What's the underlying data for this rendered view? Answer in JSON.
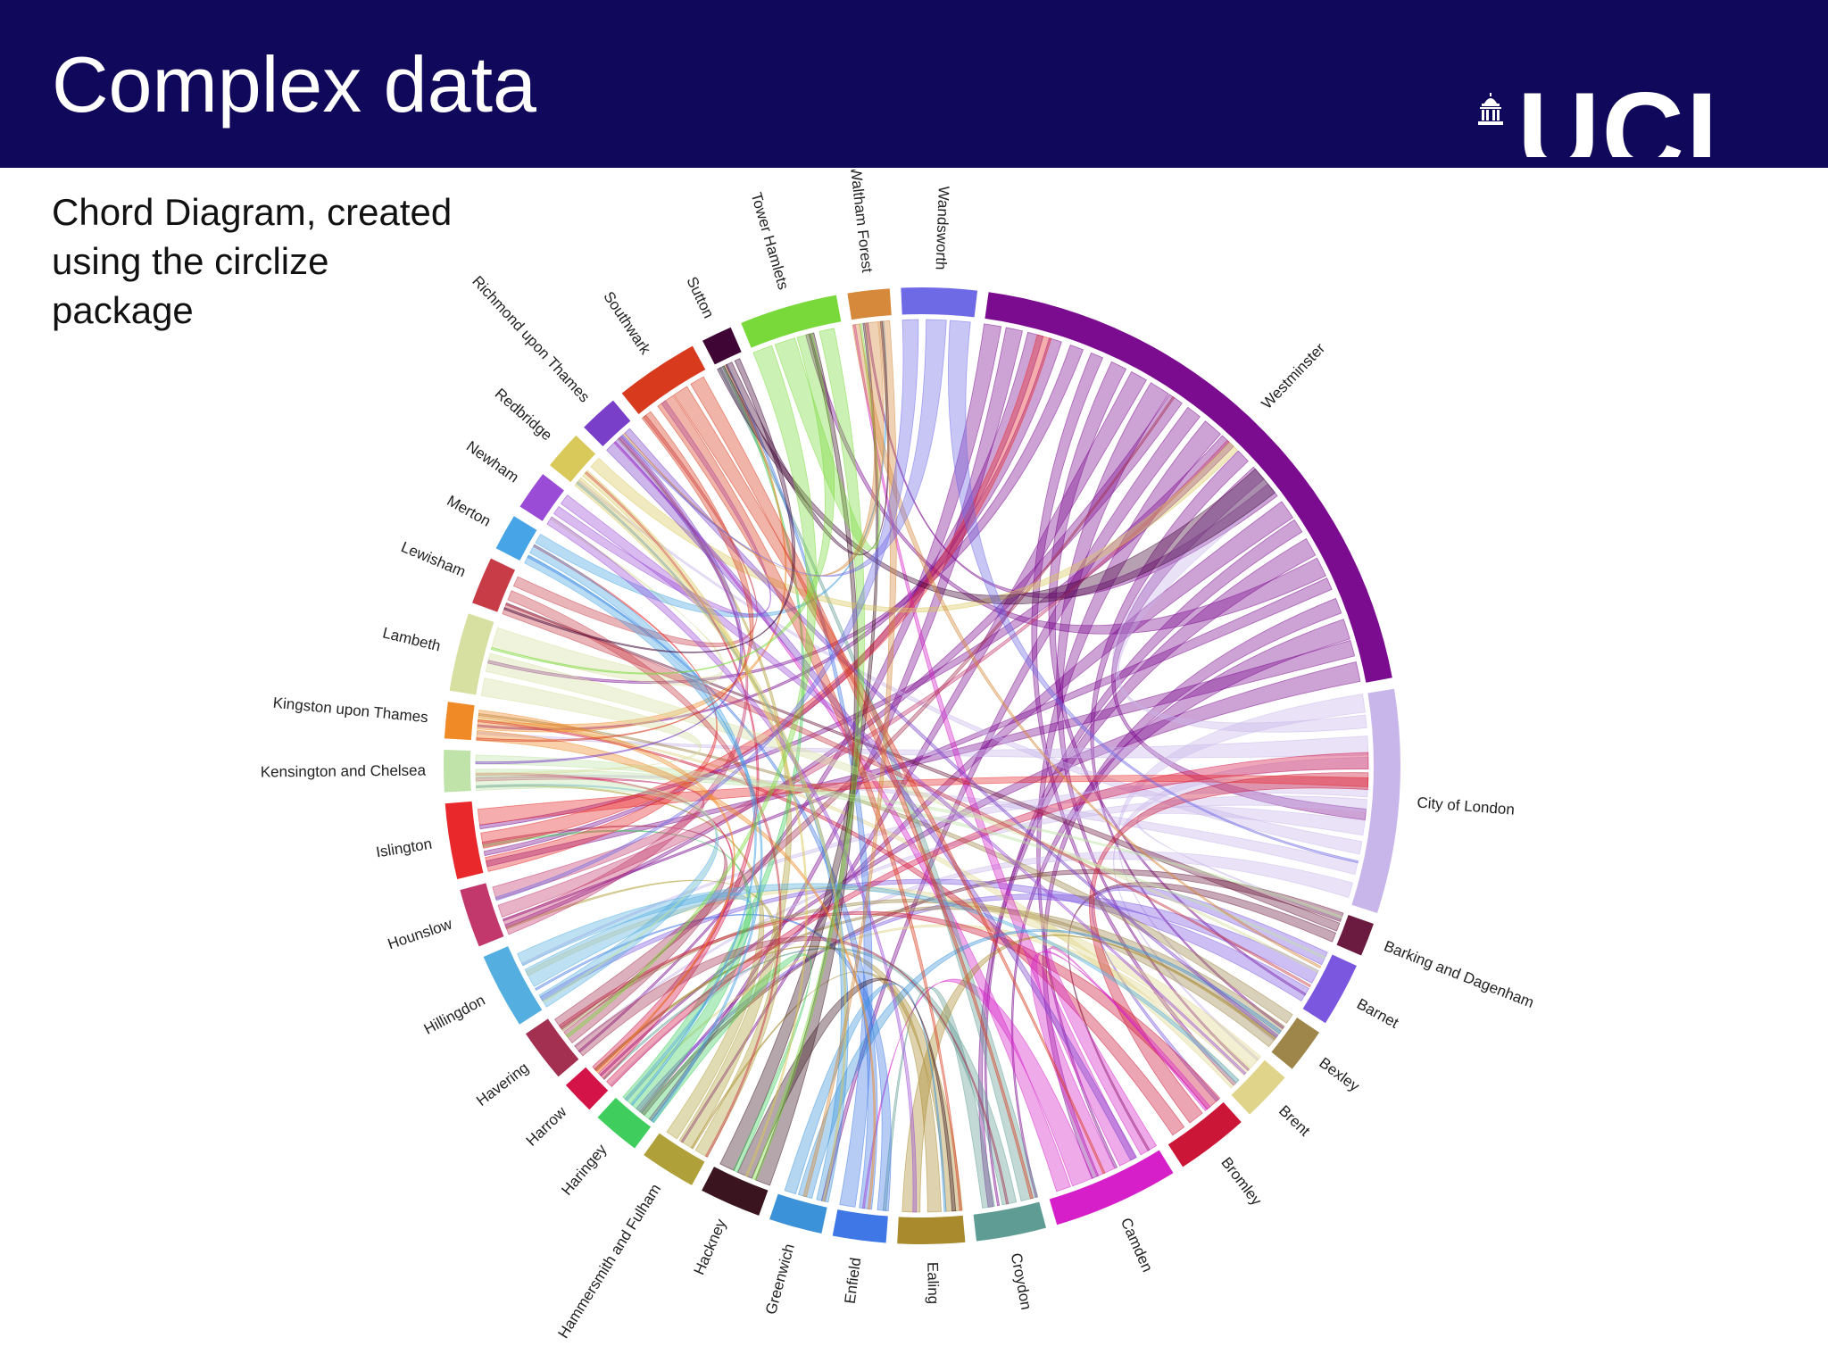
{
  "header": {
    "title": "Complex data",
    "logo": {
      "text": "UCL",
      "icon": "portico-dome-icon",
      "color": "#ffffff"
    },
    "background": "#10085a"
  },
  "caption": {
    "lines": [
      "Chord Diagram, created",
      "using the circlize",
      "package"
    ]
  },
  "diagram": {
    "type": "chord",
    "sectors": [
      {
        "name": "Westminster",
        "size": 21,
        "color": "#7b0b8f"
      },
      {
        "name": "City of London",
        "size": 8,
        "color": "#c8b6ea"
      },
      {
        "name": "Barking and Dagenham",
        "size": 1.2,
        "color": "#6b1b3f"
      },
      {
        "name": "Barnet",
        "size": 2.3,
        "color": "#7b57e0"
      },
      {
        "name": "Bexley",
        "size": 1.6,
        "color": "#9e864a"
      },
      {
        "name": "Brent",
        "size": 1.8,
        "color": "#e0d48a"
      },
      {
        "name": "Bromley",
        "size": 2.6,
        "color": "#cc1637"
      },
      {
        "name": "Camden",
        "size": 4.5,
        "color": "#d61fc9"
      },
      {
        "name": "Croydon",
        "size": 2.5,
        "color": "#5f9c94"
      },
      {
        "name": "Ealing",
        "size": 2.4,
        "color": "#a98a2c"
      },
      {
        "name": "Enfield",
        "size": 1.9,
        "color": "#3f78e6"
      },
      {
        "name": "Greenwich",
        "size": 1.9,
        "color": "#3b92d9"
      },
      {
        "name": "Hackney",
        "size": 2.2,
        "color": "#3a1520"
      },
      {
        "name": "Hammersmith and Fulham",
        "size": 2.0,
        "color": "#b0a039"
      },
      {
        "name": "Haringey",
        "size": 1.7,
        "color": "#3fce5d"
      },
      {
        "name": "Harrow",
        "size": 1.2,
        "color": "#d41448"
      },
      {
        "name": "Havering",
        "size": 1.9,
        "color": "#a33050"
      },
      {
        "name": "Hillingdon",
        "size": 2.7,
        "color": "#54aee0"
      },
      {
        "name": "Hounslow",
        "size": 2.1,
        "color": "#c2376c"
      },
      {
        "name": "Islington",
        "size": 2.7,
        "color": "#e8282a"
      },
      {
        "name": "Kensington and Chelsea",
        "size": 1.5,
        "color": "#bfe3a8"
      },
      {
        "name": "Kingston upon Thames",
        "size": 1.3,
        "color": "#f08a26"
      },
      {
        "name": "Lambeth",
        "size": 2.8,
        "color": "#d7e0a0"
      },
      {
        "name": "Lewisham",
        "size": 1.7,
        "color": "#c83c48"
      },
      {
        "name": "Merton",
        "size": 1.3,
        "color": "#47a4e6"
      },
      {
        "name": "Newham",
        "size": 1.4,
        "color": "#9b4cd6"
      },
      {
        "name": "Redbridge",
        "size": 1.4,
        "color": "#d9c95a"
      },
      {
        "name": "Richmond upon Thames",
        "size": 1.4,
        "color": "#7a3fc8"
      },
      {
        "name": "Southwark",
        "size": 3.0,
        "color": "#d83a1e"
      },
      {
        "name": "Sutton",
        "size": 1.1,
        "color": "#3f0535"
      },
      {
        "name": "Tower Hamlets",
        "size": 3.5,
        "color": "#7ad93a"
      },
      {
        "name": "Waltham Forest",
        "size": 1.5,
        "color": "#d6883b"
      },
      {
        "name": "Wandsworth",
        "size": 2.7,
        "color": "#6e6ae6"
      }
    ]
  }
}
